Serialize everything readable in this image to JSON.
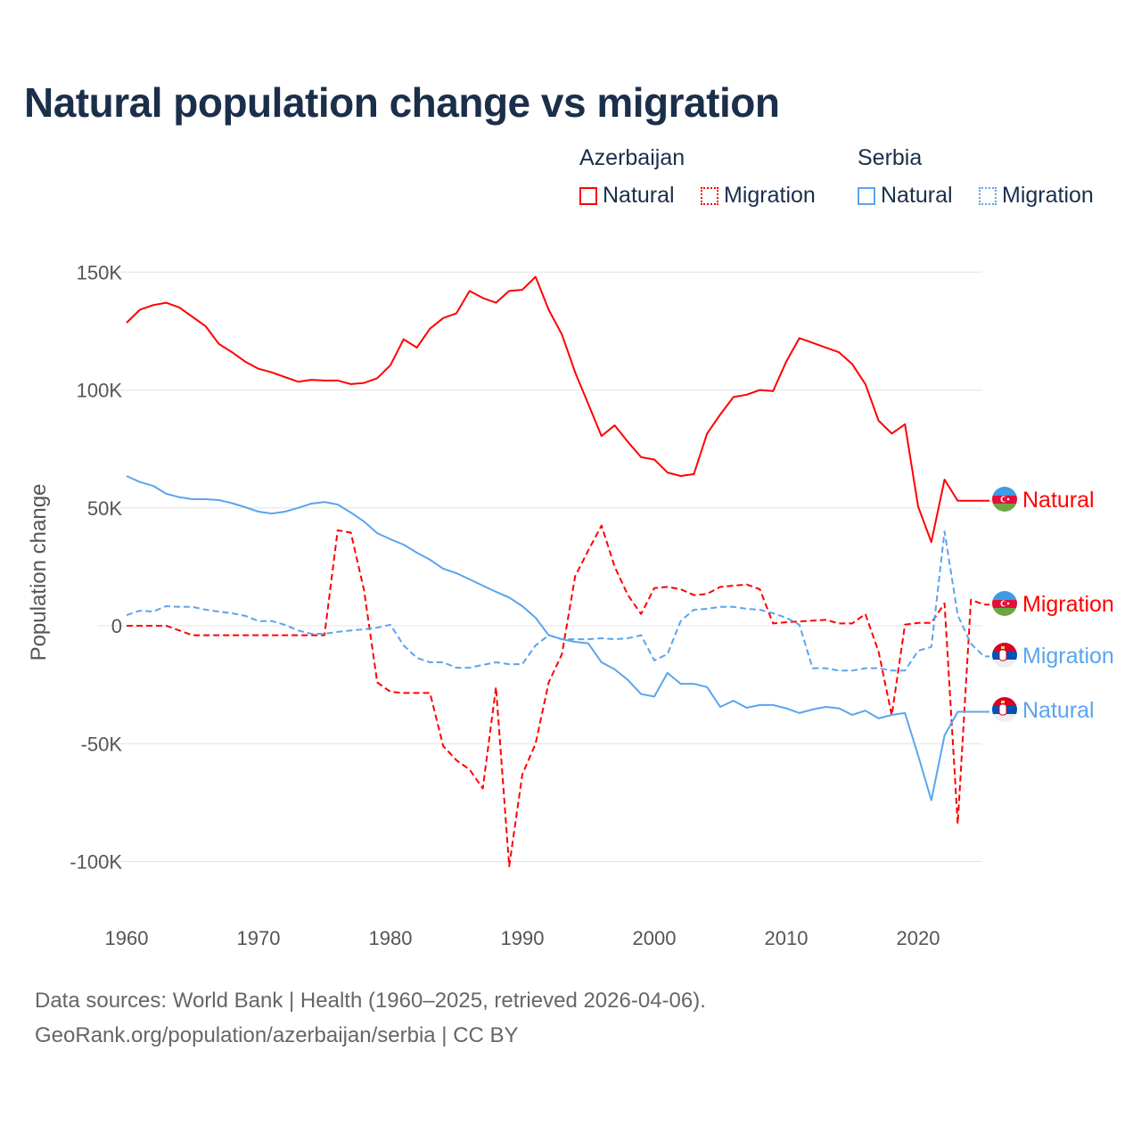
{
  "title": "Natural population change vs migration",
  "legend": {
    "groups": [
      {
        "name": "Azerbaijan",
        "items": [
          {
            "label": "Natural",
            "style": "solid",
            "color": "#ff0000"
          },
          {
            "label": "Migration",
            "style": "dotted",
            "color": "#ff0000"
          }
        ]
      },
      {
        "name": "Serbia",
        "items": [
          {
            "label": "Natural",
            "style": "solid",
            "color": "#5ba4ee"
          },
          {
            "label": "Migration",
            "style": "dotted",
            "color": "#5ba4ee"
          }
        ]
      }
    ]
  },
  "footer": {
    "line1": "Data sources: World Bank | Health (1960–2025, retrieved 2026-04-06).",
    "line2": "GeoRank.org/population/azerbaijan/serbia | CC BY"
  },
  "chart_data": {
    "type": "line",
    "title": "Natural population change vs migration",
    "xlabel": "",
    "ylabel": "Population change",
    "xlim": [
      1960,
      2025
    ],
    "ylim": [
      -115000,
      155000
    ],
    "x_ticks": [
      1960,
      1970,
      1980,
      1990,
      2000,
      2010,
      2020
    ],
    "x_tick_labels": [
      "1960",
      "1970",
      "1980",
      "1990",
      "2000",
      "2010",
      "2020"
    ],
    "y_ticks": [
      150000,
      100000,
      50000,
      0,
      -50000,
      -100000
    ],
    "y_tick_labels": [
      "150K",
      "100K",
      "50K",
      "0",
      "-50K",
      "-100K"
    ],
    "grid": true,
    "legend_position": "top-right",
    "series": [
      {
        "name": "Azerbaijan Natural",
        "end_label": "Natural",
        "country": "Azerbaijan",
        "color": "#ff0000",
        "dash": "solid",
        "start_year": 1960,
        "values": [
          128500,
          134000,
          136000,
          137000,
          135000,
          131000,
          127000,
          119500,
          116000,
          112000,
          109000,
          107500,
          105500,
          103500,
          104300,
          104000,
          104000,
          102500,
          103000,
          105000,
          110500,
          121500,
          118000,
          126000,
          130500,
          132500,
          142000,
          139000,
          137000,
          142000,
          142500,
          148000,
          134000,
          123500,
          107500,
          94000,
          80500,
          85000,
          78000,
          71500,
          70500,
          65000,
          63500,
          64300,
          81500,
          89600,
          97000,
          98000,
          100000,
          99500,
          112000,
          122000,
          120000,
          118000,
          116000,
          111000,
          102500,
          87000,
          81500,
          85500,
          50500,
          35500,
          62000,
          53000
        ]
      },
      {
        "name": "Azerbaijan Migration",
        "end_label": "Migration",
        "country": "Azerbaijan",
        "color": "#ff0000",
        "dash": "dashed",
        "start_year": 1960,
        "values": [
          0,
          0,
          0,
          0,
          -2000,
          -4000,
          -4000,
          -4000,
          -4000,
          -4000,
          -4000,
          -4000,
          -4000,
          -4000,
          -4000,
          -4000,
          40500,
          39500,
          15000,
          -24000,
          -28000,
          -28500,
          -28500,
          -28500,
          -51000,
          -57000,
          -61000,
          -69000,
          -26000,
          -102000,
          -63000,
          -50000,
          -24000,
          -12000,
          21000,
          32000,
          42500,
          25000,
          13000,
          5000,
          16000,
          16500,
          15500,
          13000,
          13500,
          16500,
          17000,
          17500,
          15500,
          1000,
          1500,
          1800,
          2200,
          2500,
          1000,
          1000,
          5000,
          -11000,
          -38000,
          500,
          1200,
          1200,
          9500,
          -84000,
          11000,
          9000
        ]
      },
      {
        "name": "Serbia Migration",
        "end_label": "Migration",
        "country": "Serbia",
        "color": "#5ba4ee",
        "dash": "dashed",
        "start_year": 1960,
        "values": [
          4500,
          6400,
          6000,
          8300,
          8000,
          8000,
          6800,
          6000,
          5300,
          4200,
          2000,
          2000,
          400,
          -2000,
          -3400,
          -3400,
          -2600,
          -2000,
          -1500,
          -800,
          400,
          -8300,
          -13600,
          -15500,
          -15500,
          -17800,
          -17800,
          -16600,
          -15500,
          -16300,
          -16300,
          -8300,
          -4000,
          -5700,
          -5700,
          -5700,
          -5300,
          -5700,
          -5300,
          -4000,
          -14700,
          -12000,
          2000,
          6800,
          7200,
          8000,
          8000,
          7200,
          6800,
          5300,
          3400,
          400,
          -18000,
          -18000,
          -19000,
          -19000,
          -18000,
          -18000,
          -19000,
          -19000,
          -10600,
          -9000,
          40000,
          4500,
          -7600,
          -13000
        ]
      },
      {
        "name": "Serbia Natural",
        "end_label": "Natural",
        "country": "Serbia",
        "color": "#5ba4ee",
        "dash": "solid",
        "start_year": 1960,
        "values": [
          63500,
          61000,
          59400,
          56000,
          54500,
          53700,
          53700,
          53300,
          52000,
          50300,
          48400,
          47600,
          48400,
          50000,
          51800,
          52500,
          51400,
          48000,
          44200,
          39300,
          36700,
          34400,
          31000,
          28000,
          24200,
          22300,
          19700,
          17000,
          14400,
          12000,
          8300,
          3400,
          -4000,
          -5700,
          -6800,
          -7500,
          -15500,
          -18500,
          -23000,
          -29000,
          -30000,
          -20000,
          -24600,
          -24600,
          -26000,
          -34400,
          -31800,
          -34800,
          -33600,
          -33600,
          -35000,
          -37000,
          -35500,
          -34400,
          -35000,
          -37800,
          -36000,
          -39300,
          -37800,
          -37000,
          -55000,
          -74000,
          -46500,
          -36500
        ]
      }
    ]
  }
}
